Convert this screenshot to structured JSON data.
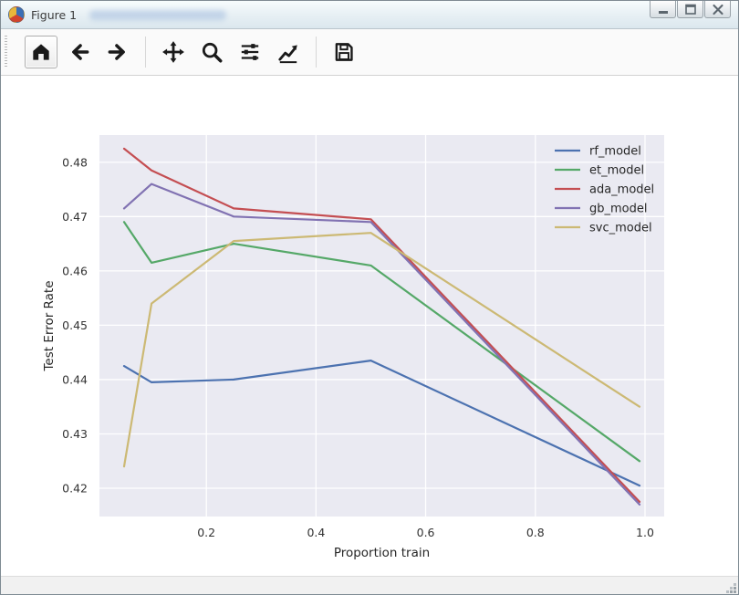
{
  "window": {
    "title": "Figure 1",
    "controls": [
      "minimize",
      "maximize",
      "close"
    ]
  },
  "toolbar": {
    "buttons": [
      "home",
      "back",
      "forward",
      "separator",
      "pan",
      "zoom",
      "configure-subplots",
      "customize-plot",
      "separator",
      "save"
    ],
    "active_button": "home"
  },
  "status_bar": {
    "message": ""
  },
  "chart_data": {
    "type": "line",
    "title": "",
    "xlabel": "Proportion train",
    "ylabel": "Test Error Rate",
    "x": [
      0.05,
      0.1,
      0.25,
      0.5,
      0.99
    ],
    "series": [
      {
        "name": "rf_model",
        "color": "#4C72B0",
        "values": [
          0.4425,
          0.4395,
          0.44,
          0.4435,
          0.4205
        ]
      },
      {
        "name": "et_model",
        "color": "#55A868",
        "values": [
          0.469,
          0.4615,
          0.465,
          0.461,
          0.425
        ]
      },
      {
        "name": "ada_model",
        "color": "#C44E52",
        "values": [
          0.4825,
          0.4785,
          0.4715,
          0.4695,
          0.4175
        ]
      },
      {
        "name": "gb_model",
        "color": "#8172B2",
        "values": [
          0.4715,
          0.476,
          0.47,
          0.469,
          0.417
        ]
      },
      {
        "name": "svc_model",
        "color": "#CCB974",
        "values": [
          0.424,
          0.454,
          0.4655,
          0.467,
          0.435
        ]
      }
    ],
    "xticks": [
      0.2,
      0.4,
      0.6,
      0.8,
      1.0
    ],
    "yticks": [
      0.42,
      0.43,
      0.44,
      0.45,
      0.46,
      0.47,
      0.48
    ],
    "xlim": [
      0.005,
      1.035
    ],
    "ylim": [
      0.4148,
      0.485
    ],
    "grid": true,
    "legend_position": "upper right",
    "plot_bg": "#EAEAF2",
    "grid_color": "#FFFFFF"
  }
}
